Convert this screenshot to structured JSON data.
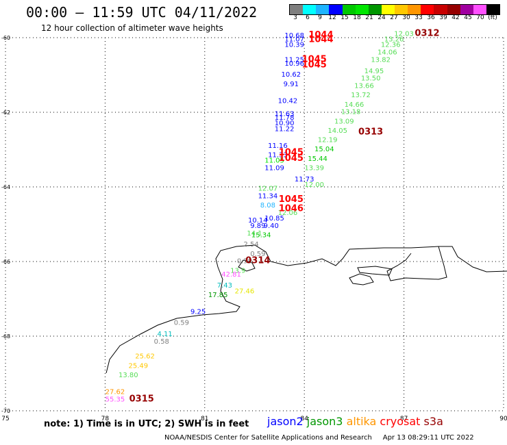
{
  "title": "00:00 – 11:59 UTC 04/11/2022",
  "subtitle": "12 hour collection of altimeter wave heights",
  "legend": {
    "colors": [
      "#7f7f7f",
      "#00ffff",
      "#1eb4ff",
      "#0000ff",
      "#00c800",
      "#00e600",
      "#009600",
      "#ffff00",
      "#ffc800",
      "#ff9600",
      "#ff0000",
      "#c80000",
      "#960000",
      "#a000a0",
      "#ff50ff",
      "#000000"
    ],
    "labels": [
      "3",
      "6",
      "9",
      "12",
      "15",
      "18",
      "21",
      "24",
      "27",
      "30",
      "33",
      "36",
      "39",
      "42",
      "45",
      "70",
      "(ft)"
    ]
  },
  "axes": {
    "x_ticks": [
      "75",
      "78",
      "81",
      "84",
      "87",
      "90"
    ],
    "y_ticks": [
      "-60",
      "-62",
      "-64",
      "-66",
      "-68",
      "-70"
    ]
  },
  "note": "note: 1) Time is in UTC; 2) SWH is in feet",
  "satellites": [
    {
      "name": "jason2",
      "color": "#0000ff"
    },
    {
      "name": "jason3",
      "color": "#009600"
    },
    {
      "name": "altika",
      "color": "#ff9600"
    },
    {
      "name": "cryosat",
      "color": "#ff0000"
    },
    {
      "name": "s3a",
      "color": "#960000"
    }
  ],
  "footer": "NOAA/NESDIS Center for Satellite Applications and Research     Apr 13 08:29:11 UTC 2022",
  "chart_data": {
    "type": "scatter",
    "xlim": [
      75,
      90
    ],
    "ylim": [
      -70,
      -60
    ],
    "points": [
      {
        "lon": 83.7,
        "lat": -60.0,
        "v": "10.68",
        "c": "#0000ff"
      },
      {
        "lon": 83.7,
        "lat": -60.1,
        "v": "11.07",
        "c": "#0000ff"
      },
      {
        "lon": 83.7,
        "lat": -60.25,
        "v": "10.39",
        "c": "#0000ff"
      },
      {
        "lon": 83.7,
        "lat": -60.65,
        "v": "11.25",
        "c": "#0000ff"
      },
      {
        "lon": 83.7,
        "lat": -60.75,
        "v": "10.96",
        "c": "#0000ff"
      },
      {
        "lon": 83.6,
        "lat": -61.05,
        "v": "10.62",
        "c": "#0000ff"
      },
      {
        "lon": 83.6,
        "lat": -61.3,
        "v": "9.91",
        "c": "#0000ff"
      },
      {
        "lon": 83.5,
        "lat": -61.75,
        "v": "10.42",
        "c": "#0000ff"
      },
      {
        "lon": 83.4,
        "lat": -62.1,
        "v": "11.63",
        "c": "#0000ff"
      },
      {
        "lon": 83.4,
        "lat": -62.2,
        "v": "11.78",
        "c": "#0000ff"
      },
      {
        "lon": 83.4,
        "lat": -62.35,
        "v": "10.90",
        "c": "#0000ff"
      },
      {
        "lon": 83.4,
        "lat": -62.5,
        "v": "11.22",
        "c": "#0000ff"
      },
      {
        "lon": 83.2,
        "lat": -62.95,
        "v": "11.16",
        "c": "#0000ff"
      },
      {
        "lon": 83.2,
        "lat": -63.2,
        "v": "11.33",
        "c": "#0000ff"
      },
      {
        "lon": 83.1,
        "lat": -63.35,
        "v": "11.05",
        "c": "#00e600"
      },
      {
        "lon": 83.1,
        "lat": -63.55,
        "v": "11.09",
        "c": "#0000ff"
      },
      {
        "lon": 84.0,
        "lat": -63.85,
        "v": "11.73",
        "c": "#0000ff"
      },
      {
        "lon": 82.9,
        "lat": -64.1,
        "v": "12.07",
        "c": "#55dd55"
      },
      {
        "lon": 84.3,
        "lat": -64.0,
        "v": "12.00",
        "c": "#55dd55"
      },
      {
        "lon": 82.9,
        "lat": -64.3,
        "v": "11.34",
        "c": "#0000ff"
      },
      {
        "lon": 82.9,
        "lat": -64.55,
        "v": "8.08",
        "c": "#1eb4ff"
      },
      {
        "lon": 83.5,
        "lat": -64.75,
        "v": "12.06",
        "c": "#55dd55"
      },
      {
        "lon": 82.6,
        "lat": -64.95,
        "v": "10.14",
        "c": "#0000ff"
      },
      {
        "lon": 83.1,
        "lat": -64.9,
        "v": "10.85",
        "c": "#0000ff"
      },
      {
        "lon": 82.6,
        "lat": -65.1,
        "v": "9.89",
        "c": "#0000ff"
      },
      {
        "lon": 83.0,
        "lat": -65.1,
        "v": "9.40",
        "c": "#0000ff"
      },
      {
        "lon": 82.5,
        "lat": -65.3,
        "v": "14.1",
        "c": "#55dd55"
      },
      {
        "lon": 82.7,
        "lat": -65.35,
        "v": "15.34",
        "c": "#00c800"
      },
      {
        "lon": 82.4,
        "lat": -65.6,
        "v": "2.54",
        "c": "#7f7f7f"
      },
      {
        "lon": 82.6,
        "lat": -65.85,
        "v": "0.59",
        "c": "#7f7f7f"
      },
      {
        "lon": 82.2,
        "lat": -66.05,
        "v": "0.59",
        "c": "#7f7f7f"
      },
      {
        "lon": 82.0,
        "lat": -66.3,
        "v": "13.9",
        "c": "#55dd55"
      },
      {
        "lon": 81.8,
        "lat": -66.4,
        "v": "42.81",
        "c": "#ff50ff"
      },
      {
        "lon": 81.6,
        "lat": -66.7,
        "v": "7.43",
        "c": "#00bcbc"
      },
      {
        "lon": 81.4,
        "lat": -66.95,
        "v": "17.85",
        "c": "#009600"
      },
      {
        "lon": 82.2,
        "lat": -66.85,
        "v": "27.46",
        "c": "#e6e600"
      },
      {
        "lon": 80.8,
        "lat": -67.4,
        "v": "9.25",
        "c": "#0000ff"
      },
      {
        "lon": 80.3,
        "lat": -67.7,
        "v": "0.59",
        "c": "#7f7f7f"
      },
      {
        "lon": 79.8,
        "lat": -68.0,
        "v": "4.11",
        "c": "#00bcbc"
      },
      {
        "lon": 79.7,
        "lat": -68.2,
        "v": "0.58",
        "c": "#7f7f7f"
      },
      {
        "lon": 79.2,
        "lat": -68.6,
        "v": "25.62",
        "c": "#ffc800"
      },
      {
        "lon": 79.0,
        "lat": -68.85,
        "v": "25.49",
        "c": "#ffc800"
      },
      {
        "lon": 78.7,
        "lat": -69.1,
        "v": "13.80",
        "c": "#55dd55"
      },
      {
        "lon": 78.3,
        "lat": -69.55,
        "v": "27.62",
        "c": "#ff9600"
      },
      {
        "lon": 78.3,
        "lat": -69.75,
        "v": "55.35",
        "c": "#ff50ff"
      },
      {
        "lon": 87.0,
        "lat": -59.95,
        "v": "12.03",
        "c": "#55dd55"
      },
      {
        "lon": 86.7,
        "lat": -60.1,
        "v": "13.26",
        "c": "#55dd55"
      },
      {
        "lon": 86.6,
        "lat": -60.25,
        "v": "12.36",
        "c": "#55dd55"
      },
      {
        "lon": 86.5,
        "lat": -60.45,
        "v": "14.06",
        "c": "#55dd55"
      },
      {
        "lon": 86.3,
        "lat": -60.65,
        "v": "13.82",
        "c": "#55dd55"
      },
      {
        "lon": 86.1,
        "lat": -60.95,
        "v": "14.95",
        "c": "#55dd55"
      },
      {
        "lon": 86.0,
        "lat": -61.15,
        "v": "13.50",
        "c": "#55dd55"
      },
      {
        "lon": 85.8,
        "lat": -61.35,
        "v": "13.66",
        "c": "#55dd55"
      },
      {
        "lon": 85.7,
        "lat": -61.6,
        "v": "13.72",
        "c": "#55dd55"
      },
      {
        "lon": 85.5,
        "lat": -61.85,
        "v": "14.66",
        "c": "#55dd55"
      },
      {
        "lon": 85.4,
        "lat": -62.05,
        "v": "13.18",
        "c": "#55dd55"
      },
      {
        "lon": 85.2,
        "lat": -62.3,
        "v": "13.09",
        "c": "#55dd55"
      },
      {
        "lon": 85.0,
        "lat": -62.55,
        "v": "14.05",
        "c": "#55dd55"
      },
      {
        "lon": 84.7,
        "lat": -62.8,
        "v": "12.19",
        "c": "#55dd55"
      },
      {
        "lon": 84.6,
        "lat": -63.05,
        "v": "15.04",
        "c": "#00c800"
      },
      {
        "lon": 84.4,
        "lat": -63.3,
        "v": "15.44",
        "c": "#00c800"
      },
      {
        "lon": 84.3,
        "lat": -63.55,
        "v": "13.39",
        "c": "#55dd55"
      }
    ],
    "times": [
      {
        "lon": 84.5,
        "lat": -60.0,
        "t": "1044",
        "c": "#ff0000"
      },
      {
        "lon": 84.5,
        "lat": -60.12,
        "t": "1044",
        "c": "#ff0000"
      },
      {
        "lon": 84.3,
        "lat": -60.65,
        "t": "1045",
        "c": "#ff0000"
      },
      {
        "lon": 84.3,
        "lat": -60.8,
        "t": "1045",
        "c": "#ff0000"
      },
      {
        "lon": 83.6,
        "lat": -63.15,
        "t": "1045",
        "c": "#ff0000"
      },
      {
        "lon": 83.6,
        "lat": -63.3,
        "t": "1045",
        "c": "#ff0000"
      },
      {
        "lon": 83.6,
        "lat": -64.4,
        "t": "1045",
        "c": "#ff0000"
      },
      {
        "lon": 83.6,
        "lat": -64.65,
        "t": "1046",
        "c": "#ff0000"
      },
      {
        "lon": 87.7,
        "lat": -59.95,
        "t": "0312",
        "c": "#960000"
      },
      {
        "lon": 86.0,
        "lat": -62.6,
        "t": "0313",
        "c": "#960000"
      },
      {
        "lon": 82.6,
        "lat": -66.05,
        "t": "0314",
        "c": "#960000"
      },
      {
        "lon": 79.1,
        "lat": -69.75,
        "t": "0315",
        "c": "#960000"
      }
    ]
  }
}
